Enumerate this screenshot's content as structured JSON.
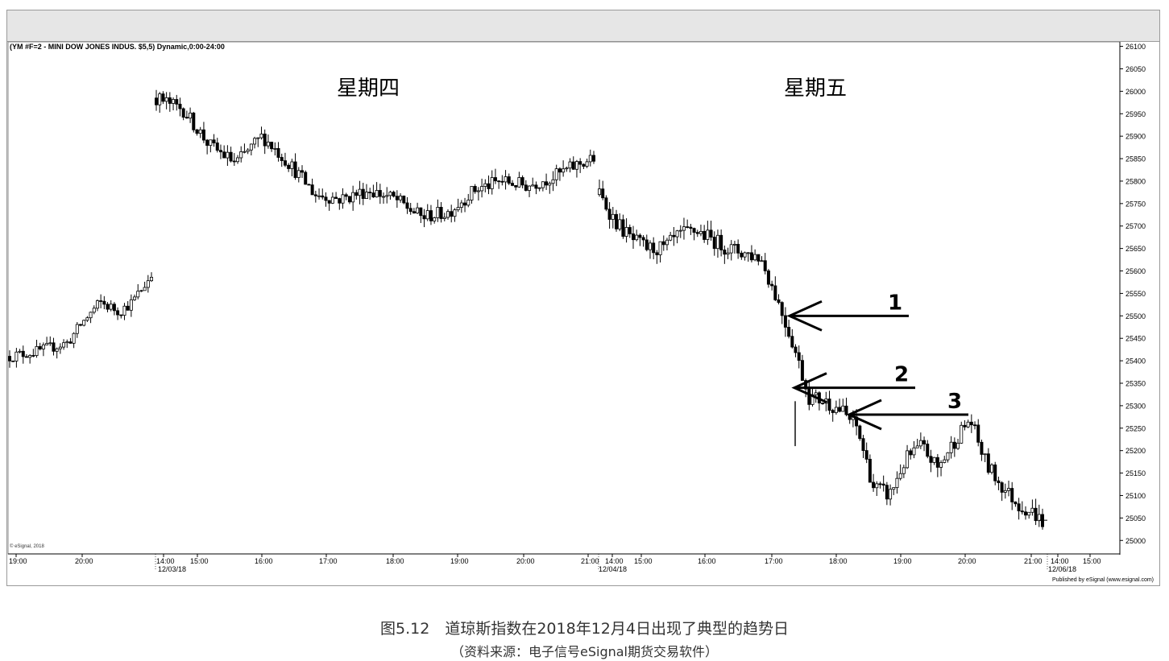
{
  "chart_data": {
    "type": "candlestick",
    "symbol_label": "(YM #F=2 - MINI DOW JONES INDUS. $5,5) Dynamic,0:00-24:00",
    "watermark": "© eSignal, 2018",
    "published": "Published by eSignal (www.esignal.com)",
    "ylim": [
      24970,
      26110
    ],
    "y_ticks": [
      26100,
      26050,
      26000,
      25950,
      25900,
      25850,
      25800,
      25750,
      25700,
      25650,
      25600,
      25550,
      25500,
      25450,
      25400,
      25350,
      25300,
      25250,
      25200,
      25150,
      25100,
      25050,
      25000
    ],
    "x_time_labels": [
      "19:00",
      "20:00",
      "14:00",
      "15:00",
      "16:00",
      "17:00",
      "18:00",
      "19:00",
      "20:00",
      "21:00",
      "14:00",
      "15:00",
      "16:00",
      "17:00",
      "18:00",
      "19:00",
      "20:00",
      "21:00",
      "14:00",
      "15:00"
    ],
    "x_date_labels": [
      "12/03/18",
      "12/04/18",
      "12/06/18"
    ],
    "day_labels": [
      "星期四",
      "星期五"
    ],
    "segments": [
      {
        "n": 22,
        "open": 25410,
        "close": 25590,
        "vol": 16,
        "path": [
          [
            0,
            25410
          ],
          [
            4,
            25420
          ],
          [
            9,
            25440
          ],
          [
            11,
            25480
          ],
          [
            14,
            25530
          ],
          [
            17,
            25510
          ],
          [
            19,
            25530
          ],
          [
            22,
            25590
          ]
        ]
      },
      {
        "n": 66,
        "open": 25985,
        "close": 25850,
        "vol": 20,
        "path": [
          [
            0,
            25985
          ],
          [
            4,
            25960
          ],
          [
            8,
            25880
          ],
          [
            12,
            25840
          ],
          [
            16,
            25900
          ],
          [
            20,
            25840
          ],
          [
            24,
            25770
          ],
          [
            28,
            25760
          ],
          [
            32,
            25780
          ],
          [
            36,
            25760
          ],
          [
            40,
            25720
          ],
          [
            44,
            25730
          ],
          [
            48,
            25780
          ],
          [
            52,
            25800
          ],
          [
            56,
            25790
          ],
          [
            60,
            25810
          ],
          [
            64,
            25840
          ],
          [
            66,
            25850
          ]
        ]
      },
      {
        "n": 70,
        "open": 25770,
        "close": 25040,
        "vol": 22,
        "path": [
          [
            0,
            25770
          ],
          [
            4,
            25710
          ],
          [
            8,
            25670
          ],
          [
            12,
            25650
          ],
          [
            16,
            25650
          ],
          [
            20,
            25680
          ],
          [
            24,
            25690
          ],
          [
            28,
            25670
          ],
          [
            32,
            25650
          ],
          [
            36,
            25640
          ],
          [
            40,
            25630
          ],
          [
            44,
            25540
          ],
          [
            48,
            25440
          ],
          [
            52,
            25320
          ],
          [
            56,
            25310
          ],
          [
            60,
            25290
          ],
          [
            64,
            25250
          ],
          [
            68,
            25120
          ],
          [
            72,
            25100
          ],
          [
            76,
            25180
          ],
          [
            80,
            25210
          ],
          [
            84,
            25160
          ],
          [
            88,
            25220
          ],
          [
            92,
            25270
          ],
          [
            96,
            25170
          ],
          [
            100,
            25120
          ],
          [
            104,
            25080
          ],
          [
            108,
            25060
          ],
          [
            110,
            25040
          ]
        ]
      }
    ],
    "annotations": [
      {
        "label": "1",
        "tip": [
          25570,
          25500
        ]
      },
      {
        "label": "2",
        "tip": [
          25350,
          25340
        ]
      },
      {
        "label": "3",
        "tip": [
          25280,
          25280
        ]
      }
    ]
  },
  "caption": {
    "title": "图5.12　道琼斯指数在2018年12月4日出现了典型的趋势日",
    "source": "（资料来源：电子信号eSignal期货交易软件）"
  }
}
